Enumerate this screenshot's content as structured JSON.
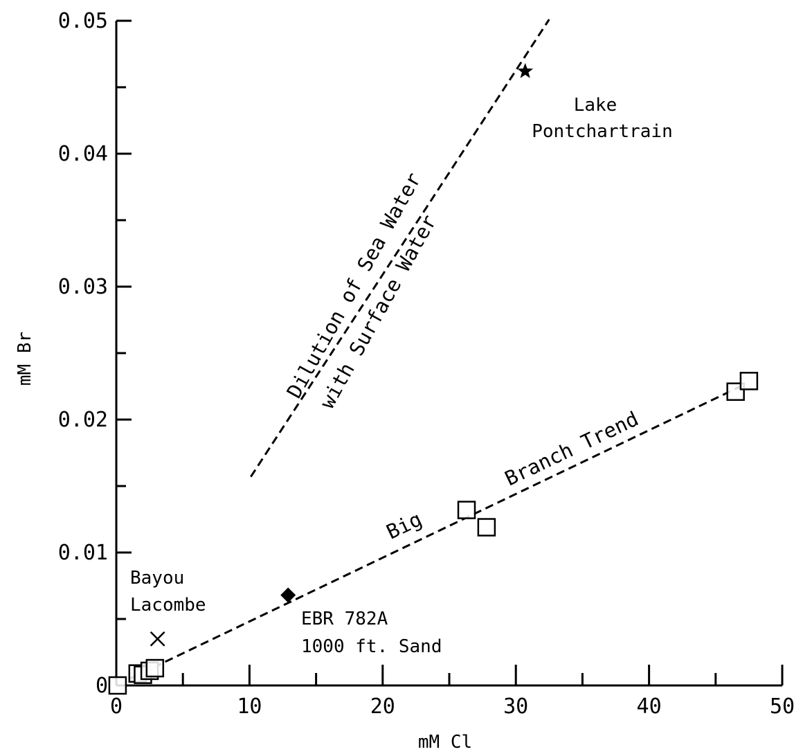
{
  "chart_data": {
    "type": "scatter",
    "xlabel": "mM Cl",
    "ylabel": "mM Br",
    "xlim": [
      0,
      50
    ],
    "ylim": [
      0,
      0.05
    ],
    "x_ticks": [
      "0",
      "10",
      "20",
      "30",
      "40",
      "50"
    ],
    "y_ticks": [
      "0",
      "0.01",
      "0.02",
      "0.03",
      "0.04",
      "0.05"
    ],
    "series": [
      {
        "marker": "open-square",
        "points": [
          [
            0.1,
            0.0
          ],
          [
            1.6,
            0.0009
          ],
          [
            2.0,
            0.0008
          ],
          [
            2.5,
            0.0011
          ],
          [
            2.9,
            0.0013
          ],
          [
            26.3,
            0.0132
          ],
          [
            27.8,
            0.0119
          ],
          [
            46.5,
            0.0221
          ],
          [
            47.5,
            0.0229
          ]
        ]
      },
      {
        "marker": "x",
        "points": [
          [
            3.1,
            0.0035
          ]
        ]
      },
      {
        "marker": "filled-diamond",
        "points": [
          [
            12.9,
            0.0068
          ]
        ]
      },
      {
        "marker": "star",
        "points": [
          [
            30.7,
            0.0462
          ]
        ]
      }
    ],
    "trend_lines": [
      {
        "x": [
          1.0,
          47.3
        ],
        "y": [
          0.0005,
          0.0227
        ]
      },
      {
        "x": [
          10.1,
          32.5
        ],
        "y": [
          0.0157,
          0.0501
        ]
      }
    ],
    "annotations": {
      "lake_line1": "Lake",
      "lake_line2": "Pontchartrain",
      "bayou_line1": "Bayou",
      "bayou_line2": "Lacombe",
      "ebr_line1": "EBR 782A",
      "ebr_line2": "1000 ft. Sand",
      "dilution_line1": "Dilution of Sea Water",
      "dilution_line2": "with Surface Water",
      "big": "Big",
      "branch": "Branch Trend"
    }
  }
}
